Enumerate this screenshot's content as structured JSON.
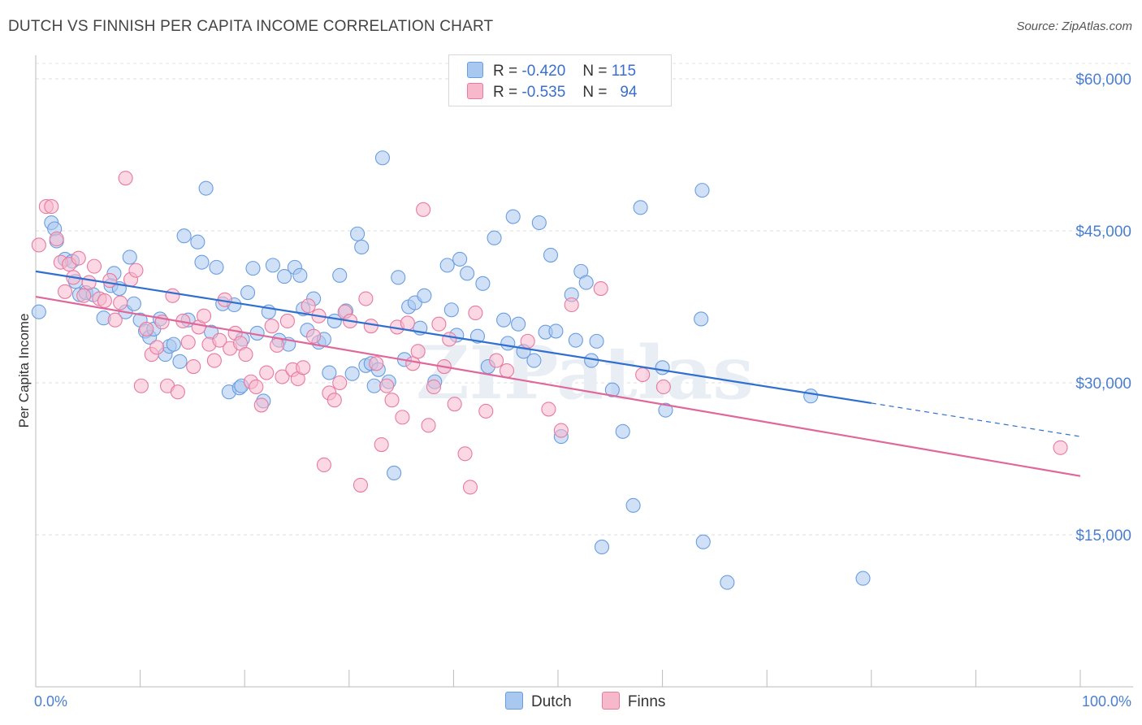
{
  "title": "DUTCH VS FINNISH PER CAPITA INCOME CORRELATION CHART",
  "source": "Source: ZipAtlas.com",
  "legend": {
    "rows": [
      {
        "r_label": "R =",
        "r_value": "-0.420",
        "n_label": "N =",
        "n_value": "115",
        "color": "#a9c8f0"
      },
      {
        "r_label": "R =",
        "r_value": "-0.535",
        "n_label": "N =",
        "n_value": "94",
        "color": "#f7b8cc"
      }
    ]
  },
  "bottom_legend": [
    {
      "label": "Dutch",
      "color": "#a9c8f0"
    },
    {
      "label": "Finns",
      "color": "#f7b8cc"
    }
  ],
  "watermark": "ZIPatlas",
  "chart_data": {
    "type": "scatter",
    "xlabel": "",
    "ylabel": "Per Capita Income",
    "xlim": [
      0,
      100
    ],
    "ylim": [
      0,
      62000
    ],
    "x_tick_labels": [
      "0.0%",
      "100.0%"
    ],
    "y_ticks": [
      15000,
      30000,
      45000,
      60000
    ],
    "y_tick_labels": [
      "$15,000",
      "$30,000",
      "$45,000",
      "$60,000"
    ],
    "grid": true,
    "series": [
      {
        "name": "Dutch",
        "color": "#6a9de0",
        "fill": "#a9c8f0",
        "trend": {
          "x0": 0,
          "y0": 41000,
          "x1": 80,
          "y1": 28000,
          "dash_x1": 100,
          "dash_y1": 24700
        },
        "points": [
          [
            0.3,
            37000
          ],
          [
            1.5,
            45800
          ],
          [
            1.8,
            45200
          ],
          [
            2.0,
            44000
          ],
          [
            2.8,
            42200
          ],
          [
            3.5,
            42000
          ],
          [
            3.8,
            40000
          ],
          [
            4.2,
            38700
          ],
          [
            4.8,
            38900
          ],
          [
            5.5,
            38700
          ],
          [
            6.5,
            36400
          ],
          [
            7.2,
            39600
          ],
          [
            7.5,
            40800
          ],
          [
            8.0,
            39300
          ],
          [
            8.6,
            37000
          ],
          [
            9.0,
            42400
          ],
          [
            9.4,
            37800
          ],
          [
            10.0,
            36200
          ],
          [
            10.5,
            35100
          ],
          [
            10.9,
            34500
          ],
          [
            11.3,
            35300
          ],
          [
            11.9,
            36300
          ],
          [
            12.4,
            32800
          ],
          [
            12.8,
            33600
          ],
          [
            13.2,
            33800
          ],
          [
            13.8,
            32100
          ],
          [
            14.2,
            44500
          ],
          [
            14.6,
            36200
          ],
          [
            15.5,
            43900
          ],
          [
            15.9,
            41900
          ],
          [
            16.3,
            49200
          ],
          [
            16.8,
            35000
          ],
          [
            17.3,
            41400
          ],
          [
            17.9,
            37800
          ],
          [
            18.5,
            29100
          ],
          [
            19.0,
            37700
          ],
          [
            19.5,
            29500
          ],
          [
            19.7,
            29700
          ],
          [
            19.8,
            34300
          ],
          [
            20.3,
            38900
          ],
          [
            20.8,
            41300
          ],
          [
            21.2,
            34900
          ],
          [
            21.8,
            28200
          ],
          [
            22.3,
            37000
          ],
          [
            22.7,
            41600
          ],
          [
            23.3,
            34200
          ],
          [
            23.8,
            40500
          ],
          [
            24.2,
            33800
          ],
          [
            24.8,
            41400
          ],
          [
            25.3,
            40600
          ],
          [
            25.6,
            37300
          ],
          [
            26.0,
            35200
          ],
          [
            26.6,
            38300
          ],
          [
            27.1,
            34000
          ],
          [
            27.6,
            34300
          ],
          [
            28.1,
            31000
          ],
          [
            28.6,
            36100
          ],
          [
            29.1,
            40600
          ],
          [
            29.7,
            37100
          ],
          [
            30.3,
            30900
          ],
          [
            30.8,
            44700
          ],
          [
            31.2,
            43400
          ],
          [
            31.6,
            31700
          ],
          [
            32.1,
            31900
          ],
          [
            32.4,
            29700
          ],
          [
            32.8,
            31300
          ],
          [
            33.2,
            52200
          ],
          [
            33.8,
            30100
          ],
          [
            34.3,
            21100
          ],
          [
            34.7,
            40400
          ],
          [
            35.3,
            32300
          ],
          [
            35.7,
            37500
          ],
          [
            36.3,
            37900
          ],
          [
            36.8,
            35400
          ],
          [
            37.2,
            38600
          ],
          [
            38.2,
            30100
          ],
          [
            39.4,
            41600
          ],
          [
            39.8,
            37200
          ],
          [
            40.3,
            34700
          ],
          [
            40.6,
            42200
          ],
          [
            41.3,
            40800
          ],
          [
            42.3,
            34600
          ],
          [
            42.8,
            39800
          ],
          [
            43.3,
            31600
          ],
          [
            43.9,
            44300
          ],
          [
            44.8,
            36200
          ],
          [
            45.2,
            33900
          ],
          [
            45.7,
            46400
          ],
          [
            46.2,
            35800
          ],
          [
            46.7,
            33100
          ],
          [
            47.7,
            32200
          ],
          [
            48.2,
            45800
          ],
          [
            48.8,
            35000
          ],
          [
            49.3,
            42600
          ],
          [
            49.8,
            35100
          ],
          [
            50.3,
            24700
          ],
          [
            51.3,
            38700
          ],
          [
            51.7,
            34200
          ],
          [
            52.2,
            41000
          ],
          [
            52.7,
            39900
          ],
          [
            53.2,
            32200
          ],
          [
            53.7,
            34100
          ],
          [
            54.2,
            13800
          ],
          [
            55.2,
            29300
          ],
          [
            56.2,
            25200
          ],
          [
            57.2,
            17900
          ],
          [
            57.9,
            47300
          ],
          [
            60.0,
            31500
          ],
          [
            60.3,
            27300
          ],
          [
            63.8,
            49000
          ],
          [
            63.7,
            36300
          ],
          [
            63.9,
            14300
          ],
          [
            66.2,
            10300
          ],
          [
            74.2,
            28700
          ],
          [
            79.2,
            10700
          ]
        ]
      },
      {
        "name": "Finns",
        "color": "#e87aa0",
        "fill": "#f7b8cc",
        "trend": {
          "x0": 0,
          "y0": 38500,
          "x1": 100,
          "y1": 20800
        },
        "points": [
          [
            0.3,
            43600
          ],
          [
            1.0,
            47400
          ],
          [
            1.5,
            47400
          ],
          [
            2.0,
            44200
          ],
          [
            2.4,
            41900
          ],
          [
            2.8,
            39000
          ],
          [
            3.2,
            41700
          ],
          [
            3.6,
            40400
          ],
          [
            4.1,
            42300
          ],
          [
            4.6,
            38600
          ],
          [
            5.1,
            39900
          ],
          [
            5.6,
            41500
          ],
          [
            6.1,
            38300
          ],
          [
            6.6,
            38100
          ],
          [
            7.1,
            40100
          ],
          [
            7.6,
            36200
          ],
          [
            8.1,
            37900
          ],
          [
            8.6,
            50200
          ],
          [
            9.1,
            40200
          ],
          [
            9.6,
            41100
          ],
          [
            10.1,
            29700
          ],
          [
            10.6,
            35300
          ],
          [
            11.1,
            32800
          ],
          [
            11.6,
            33500
          ],
          [
            12.1,
            36000
          ],
          [
            12.6,
            29700
          ],
          [
            13.1,
            38600
          ],
          [
            13.6,
            29100
          ],
          [
            14.1,
            36100
          ],
          [
            14.6,
            34000
          ],
          [
            15.1,
            31600
          ],
          [
            15.6,
            35500
          ],
          [
            16.1,
            36600
          ],
          [
            16.6,
            33800
          ],
          [
            17.1,
            32200
          ],
          [
            17.6,
            34200
          ],
          [
            18.1,
            38200
          ],
          [
            18.6,
            33400
          ],
          [
            19.1,
            34900
          ],
          [
            19.6,
            33900
          ],
          [
            20.1,
            32800
          ],
          [
            20.6,
            30100
          ],
          [
            21.1,
            29600
          ],
          [
            21.6,
            27800
          ],
          [
            22.1,
            31000
          ],
          [
            22.6,
            35600
          ],
          [
            23.1,
            33700
          ],
          [
            23.6,
            30600
          ],
          [
            24.1,
            36100
          ],
          [
            24.6,
            31300
          ],
          [
            25.1,
            30400
          ],
          [
            25.6,
            31500
          ],
          [
            26.1,
            37600
          ],
          [
            26.6,
            34600
          ],
          [
            27.1,
            36600
          ],
          [
            27.6,
            21900
          ],
          [
            28.1,
            29000
          ],
          [
            28.6,
            28300
          ],
          [
            29.1,
            30000
          ],
          [
            29.6,
            37000
          ],
          [
            30.1,
            36100
          ],
          [
            31.1,
            19900
          ],
          [
            31.6,
            38300
          ],
          [
            32.1,
            35600
          ],
          [
            32.6,
            31900
          ],
          [
            33.1,
            23900
          ],
          [
            33.6,
            29700
          ],
          [
            34.1,
            28300
          ],
          [
            34.6,
            35500
          ],
          [
            35.1,
            26600
          ],
          [
            35.6,
            35900
          ],
          [
            36.1,
            31900
          ],
          [
            36.6,
            33100
          ],
          [
            37.1,
            47100
          ],
          [
            37.6,
            25800
          ],
          [
            38.1,
            29600
          ],
          [
            38.6,
            35800
          ],
          [
            39.1,
            31600
          ],
          [
            39.6,
            34300
          ],
          [
            40.1,
            27900
          ],
          [
            41.1,
            23000
          ],
          [
            41.6,
            19700
          ],
          [
            42.1,
            36900
          ],
          [
            43.1,
            27200
          ],
          [
            44.1,
            32200
          ],
          [
            45.1,
            31200
          ],
          [
            47.1,
            34100
          ],
          [
            49.1,
            27400
          ],
          [
            50.3,
            25300
          ],
          [
            51.3,
            37700
          ],
          [
            54.1,
            39300
          ],
          [
            58.1,
            30800
          ],
          [
            60.1,
            29600
          ],
          [
            98.1,
            23600
          ]
        ]
      }
    ]
  }
}
